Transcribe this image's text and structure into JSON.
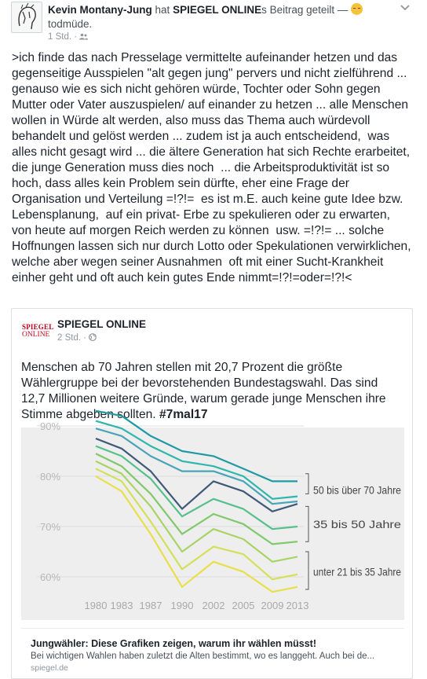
{
  "post": {
    "author": "Kevin Montany-Jung",
    "shared_word": "hat",
    "page_name": "SPIEGEL ONLINE",
    "shared_suffix": "s Beitrag geteilt —",
    "feeling": "todmüde.",
    "time": "1 Std.",
    "text": ">ich finde das nach Presselage vermittelte aufeinander hetzen und das gegenseitige Ausspielen \"alt gegen jung\" pervers und nicht zielführend ...  genauso wie es sich nicht gehören würde, Tochter oder Sohn gegen Mutter oder Vater auszuspielen/ auf einander zu hetzen ... alle Menschen wollen in Würde alt werden, also muss das Thema auch würdevoll behandelt und gelöst werden ... zudem ist ja auch entscheidend,  was alles nicht gesagt wird ... die ältere Generation hat sich Rechte erarbeitet, die junge Generation muss dies noch  ... die Arbeitsproduktivität ist so hoch, dass alles kein Problem sein dürfte, eher eine Frage der Organisation und Verteilung =!?!=  es ist m.E. auch keine gute Idee bzw.  Lebensplanung,  auf ein privat- Erbe zu spekulieren oder zu erwarten,  von heute auf morgen Reich werden zu können  usw. =!?!= ... solche Hoffnungen lassen sich nur durch Lotto oder Spekulationen verwirklichen, welche aber wegen seiner Ausnahmen  oft mit einer Sucht-Krankheit einher geht und oft auch kein gutes Ende nimmt=!?!=oder=!?!<"
  },
  "shared": {
    "logo_line1": "SPIEGEL",
    "logo_line2": "ONLINE",
    "page_name": "SPIEGEL ONLINE",
    "time": "2 Std.",
    "text": "Menschen ab 70 Jahren stellen mit 20,7 Prozent die größte Wählergruppe bei der bevorstehenden Bundestagswahl. Das sind 12,7 Millionen weitere Gründe, warum gerade junge Menschen ihre Stimme abgeben sollten. ",
    "hashtag": "#7mal17",
    "link_title": "Jungwähler: Diese Grafiken zeigen, warum ihr wählen müsst!",
    "link_desc": "Bei wichtigen Wahlen haben zuletzt die Alten bestimmt, wo es langgeht. Auch bei de...",
    "link_domain": "spiegel.de"
  },
  "chart_data": {
    "type": "line",
    "x": [
      1980,
      1983,
      1987,
      1990,
      2002,
      2005,
      2009,
      2013
    ],
    "ylim": [
      55,
      91
    ],
    "y_ticks": [
      "90%",
      "80%",
      "70%",
      "60%"
    ],
    "x_tick_labels": [
      "1980",
      "1983",
      "1987",
      "1990",
      "2002",
      "2005",
      "2009",
      "2013"
    ],
    "group_labels": [
      "50 bis über 70 Jahre",
      "35 bis 50 Jahre",
      "unter 21 bis 35 Jahre"
    ],
    "series": [
      {
        "color": "#1f9aa3",
        "values": [
          93,
          92,
          88,
          85,
          84,
          81.5,
          79,
          79
        ]
      },
      {
        "color": "#2fb7ad",
        "values": [
          91,
          89.5,
          86,
          83,
          82,
          80,
          75.5,
          76
        ]
      },
      {
        "color": "#4aa4b8",
        "values": [
          89.5,
          88,
          84,
          81,
          81,
          79,
          74.5,
          75
        ]
      },
      {
        "color": "#3f5a78",
        "values": [
          87.5,
          85.5,
          81,
          73.5,
          79,
          77,
          73,
          74.5
        ]
      },
      {
        "color": "#56c08c",
        "values": [
          86,
          84,
          79.5,
          72,
          75.5,
          73.5,
          69.5,
          70
        ]
      },
      {
        "color": "#7fc96a",
        "values": [
          84.5,
          82,
          76.5,
          68.5,
          72.5,
          70.5,
          66.5,
          67
        ]
      },
      {
        "color": "#a8d466",
        "values": [
          83,
          80.5,
          74,
          65,
          69.5,
          67.5,
          63,
          64
        ]
      },
      {
        "color": "#d3e05a",
        "values": [
          81.5,
          79,
          71,
          61.5,
          66,
          64.5,
          59.5,
          60.5
        ]
      },
      {
        "color": "#e9df4a",
        "values": [
          80,
          77,
          68.5,
          58,
          63,
          61,
          57,
          58
        ]
      }
    ]
  }
}
